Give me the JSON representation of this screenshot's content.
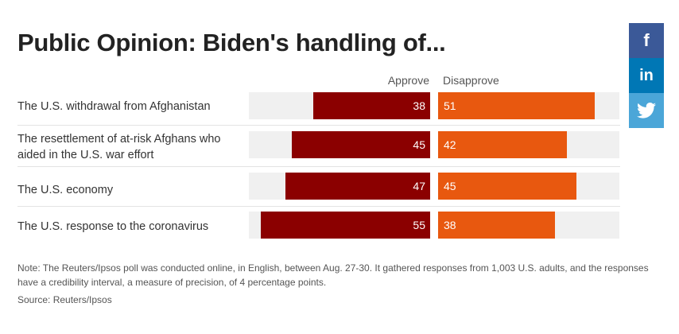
{
  "title": "Public Opinion: Biden's handling of...",
  "legend": {
    "approve": "Approve",
    "disapprove": "Disapprove"
  },
  "colors": {
    "approve": "#8b0000",
    "disapprove": "#e8580f",
    "track": "#f0f0f0"
  },
  "chart_data": {
    "type": "bar",
    "orientation": "horizontal-diverging",
    "title": "Public Opinion: Biden's handling of...",
    "categories": [
      "The U.S. withdrawal from Afghanistan",
      "The resettlement of at-risk Afghans who aided in the U.S. war effort",
      "The U.S. economy",
      "The U.S. response to the coronavirus"
    ],
    "series": [
      {
        "name": "Approve",
        "values": [
          38,
          45,
          47,
          55
        ],
        "color": "#8b0000"
      },
      {
        "name": "Disapprove",
        "values": [
          51,
          42,
          45,
          38
        ],
        "color": "#e8580f"
      }
    ],
    "xlim": [
      0,
      59
    ],
    "grid": false,
    "legend_position": "top"
  },
  "footnote": "Note: The Reuters/Ipsos poll was conducted online, in English, between Aug. 27-30. It gathered responses from 1,003 U.S. adults, and the responses have a credibility interval, a measure of precision, of 4 percentage points.",
  "source": "Source: Reuters/Ipsos",
  "social": [
    {
      "icon": "facebook-icon",
      "glyph": "f"
    },
    {
      "icon": "linkedin-icon",
      "glyph": "in"
    },
    {
      "icon": "twitter-icon",
      "glyph": ""
    }
  ]
}
